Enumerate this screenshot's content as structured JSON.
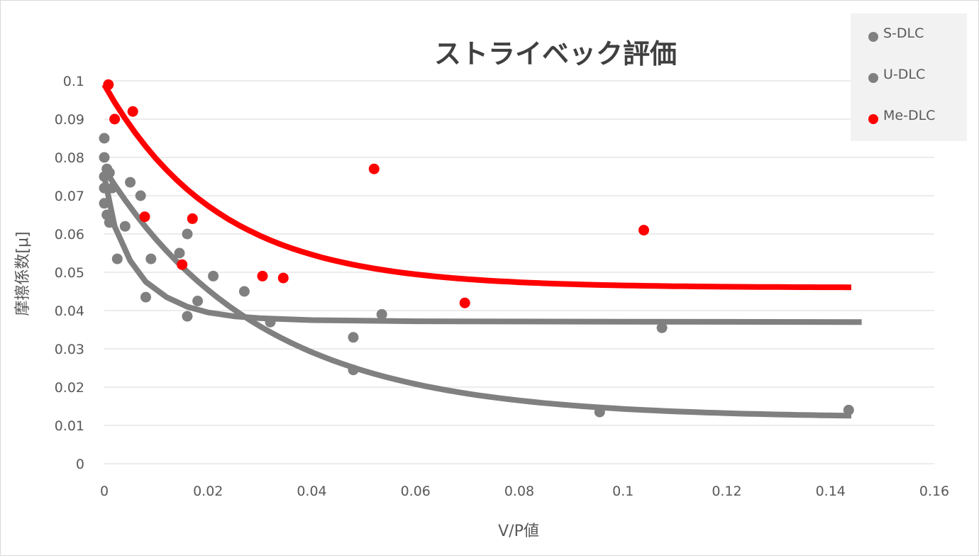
{
  "chart_data": {
    "type": "scatter",
    "title": "ストライベック評価",
    "xlabel": "V/P値",
    "ylabel": "摩擦係数[μ]",
    "xlim": [
      0,
      0.16
    ],
    "ylim": [
      0,
      0.1
    ],
    "x_ticks": [
      "0",
      "0.02",
      "0.04",
      "0.06",
      "0.08",
      "0.1",
      "0.12",
      "0.14",
      "0.16"
    ],
    "y_ticks": [
      "0",
      "0.01",
      "0.02",
      "0.03",
      "0.04",
      "0.05",
      "0.06",
      "0.07",
      "0.08",
      "0.09",
      "0.1"
    ],
    "grid": true,
    "legend_position": "top-right",
    "series": [
      {
        "name": "S-DLC",
        "color": "#808080",
        "points": [
          [
            0,
            0.085
          ],
          [
            0,
            0.08
          ],
          [
            0,
            0.075
          ],
          [
            0,
            0.072
          ],
          [
            0,
            0.068
          ],
          [
            0.0005,
            0.065
          ],
          [
            0.001,
            0.063
          ],
          [
            0.0025,
            0.0535
          ],
          [
            0.004,
            0.062
          ],
          [
            0.008,
            0.0435
          ],
          [
            0.016,
            0.0385
          ],
          [
            0.018,
            0.0425
          ],
          [
            0.032,
            0.037
          ],
          [
            0.0535,
            0.039
          ],
          [
            0.1075,
            0.0355
          ]
        ],
        "trend": [
          [
            0,
            0.075
          ],
          [
            0.002,
            0.062
          ],
          [
            0.005,
            0.053
          ],
          [
            0.008,
            0.0475
          ],
          [
            0.012,
            0.0435
          ],
          [
            0.016,
            0.041
          ],
          [
            0.02,
            0.0395
          ],
          [
            0.025,
            0.0385
          ],
          [
            0.03,
            0.038
          ],
          [
            0.04,
            0.0375
          ],
          [
            0.06,
            0.0372
          ],
          [
            0.1,
            0.0371
          ],
          [
            0.146,
            0.037
          ]
        ]
      },
      {
        "name": "U-DLC",
        "color": "#808080",
        "points": [
          [
            0.0005,
            0.077
          ],
          [
            0.001,
            0.076
          ],
          [
            0.0015,
            0.072
          ],
          [
            0.005,
            0.0735
          ],
          [
            0.007,
            0.07
          ],
          [
            0.009,
            0.0535
          ],
          [
            0.0145,
            0.055
          ],
          [
            0.016,
            0.06
          ],
          [
            0.021,
            0.049
          ],
          [
            0.027,
            0.045
          ],
          [
            0.048,
            0.033
          ],
          [
            0.048,
            0.0245
          ],
          [
            0.0955,
            0.0135
          ],
          [
            0.1435,
            0.014
          ]
        ]
      },
      {
        "name": "Me-DLC",
        "color": "#ff0000",
        "points": [
          [
            0.0008,
            0.099
          ],
          [
            0.002,
            0.09
          ],
          [
            0.0055,
            0.092
          ],
          [
            0.0078,
            0.0645
          ],
          [
            0.015,
            0.052
          ],
          [
            0.017,
            0.064
          ],
          [
            0.0305,
            0.049
          ],
          [
            0.0345,
            0.0485
          ],
          [
            0.052,
            0.077
          ],
          [
            0.0695,
            0.042
          ],
          [
            0.104,
            0.061
          ]
        ]
      }
    ]
  }
}
